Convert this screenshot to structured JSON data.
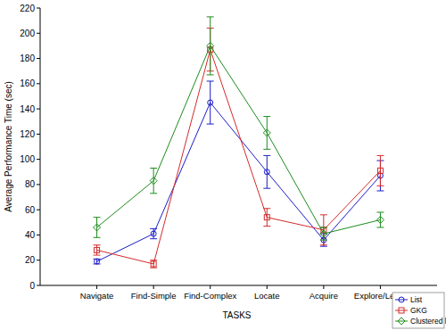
{
  "chart_data": {
    "type": "line",
    "x_label": "TASKS",
    "y_label": "Average Performance Time (sec)",
    "categories": [
      "Navigate",
      "Find-Simple",
      "Find-Complex",
      "Locate",
      "Acquire",
      "Explore/Learn"
    ],
    "series": [
      {
        "name": "List",
        "color": "#1c1cc8",
        "marker": "circle",
        "values": [
          19,
          41,
          145,
          90,
          36,
          87
        ],
        "errors": [
          2,
          4,
          17,
          13,
          5,
          12
        ]
      },
      {
        "name": "GKG",
        "color": "#d42a2a",
        "marker": "square",
        "values": [
          28,
          17,
          187,
          54,
          44,
          91
        ],
        "errors": [
          4,
          3,
          17,
          7,
          12,
          12
        ]
      },
      {
        "name": "Clustered list",
        "color": "#1d8c1d",
        "marker": "diamond",
        "values": [
          46,
          83,
          190,
          121,
          41,
          52
        ],
        "errors": [
          8,
          10,
          23,
          13,
          5,
          6
        ]
      }
    ],
    "ylim": [
      0,
      220
    ],
    "yticks": [
      0,
      20,
      40,
      60,
      80,
      100,
      120,
      140,
      160,
      180,
      200,
      220
    ],
    "grid": false,
    "legend": "bottom-right"
  }
}
